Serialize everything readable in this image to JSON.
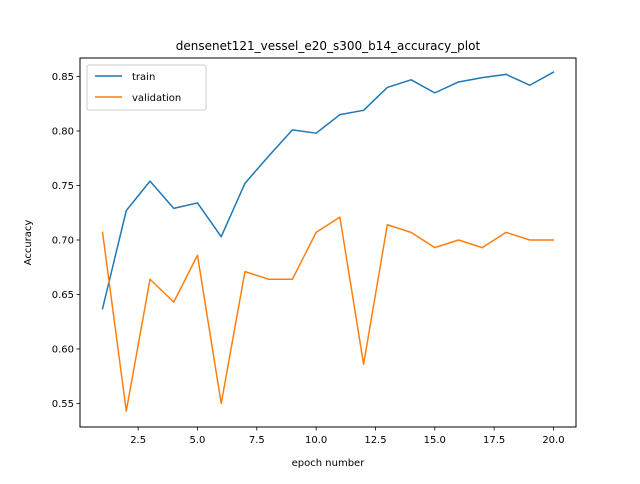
{
  "chart_data": {
    "type": "line",
    "title": "densenet121_vessel_e20_s300_b14_accuracy_plot",
    "xlabel": "epoch number",
    "ylabel": "Accuracy",
    "x": [
      1,
      2,
      3,
      4,
      5,
      6,
      7,
      8,
      9,
      10,
      11,
      12,
      13,
      14,
      15,
      16,
      17,
      18,
      19,
      20
    ],
    "series": [
      {
        "name": "train",
        "color": "#1f77b4",
        "values": [
          0.637,
          0.727,
          0.754,
          0.729,
          0.734,
          0.703,
          0.752,
          0.777,
          0.801,
          0.798,
          0.815,
          0.819,
          0.84,
          0.847,
          0.835,
          0.845,
          0.849,
          0.852,
          0.842,
          0.854
        ]
      },
      {
        "name": "validation",
        "color": "#ff7f0e",
        "values": [
          0.707,
          0.543,
          0.664,
          0.643,
          0.686,
          0.55,
          0.671,
          0.664,
          0.664,
          0.707,
          0.721,
          0.586,
          0.714,
          0.707,
          0.693,
          0.7,
          0.693,
          0.707,
          0.7,
          0.7
        ]
      }
    ],
    "xlim": [
      0.05,
      20.95
    ],
    "ylim": [
      0.5284,
      0.867
    ],
    "xticks": [
      {
        "value": 2.5,
        "label": "2.5"
      },
      {
        "value": 5.0,
        "label": "5.0"
      },
      {
        "value": 7.5,
        "label": "7.5"
      },
      {
        "value": 10.0,
        "label": "10.0"
      },
      {
        "value": 12.5,
        "label": "12.5"
      },
      {
        "value": 15.0,
        "label": "15.0"
      },
      {
        "value": 17.5,
        "label": "17.5"
      },
      {
        "value": 20.0,
        "label": "20.0"
      }
    ],
    "yticks": [
      {
        "value": 0.55,
        "label": "0.55"
      },
      {
        "value": 0.6,
        "label": "0.60"
      },
      {
        "value": 0.65,
        "label": "0.65"
      },
      {
        "value": 0.7,
        "label": "0.70"
      },
      {
        "value": 0.75,
        "label": "0.75"
      },
      {
        "value": 0.8,
        "label": "0.80"
      },
      {
        "value": 0.85,
        "label": "0.85"
      }
    ],
    "grid": false,
    "legend_position": "upper-left"
  }
}
